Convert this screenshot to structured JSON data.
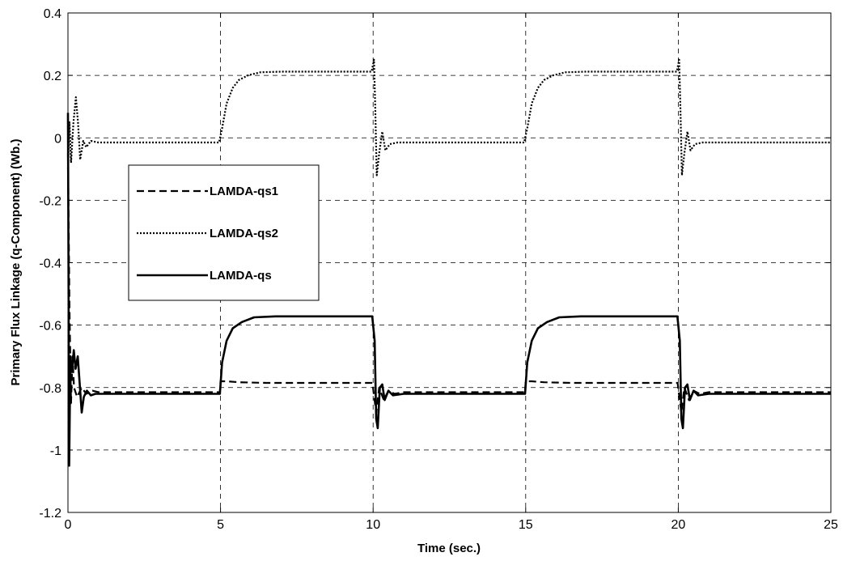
{
  "chart_data": {
    "type": "line",
    "title": "",
    "xlabel": "Time (sec.)",
    "ylabel": "Primary Flux Linkage (q-Component) (Wb.)",
    "xlim": [
      0,
      25
    ],
    "ylim": [
      -1.2,
      0.4
    ],
    "xticks": [
      0,
      5,
      10,
      15,
      20,
      25
    ],
    "yticks": [
      -1.2,
      -1,
      -0.8,
      -0.6,
      -0.4,
      -0.2,
      0,
      0.2,
      0.4
    ],
    "xtick_labels": [
      "0",
      "5",
      "10",
      "15",
      "20",
      "25"
    ],
    "ytick_labels": [
      "-1.2",
      "-1",
      "-0.8",
      "-0.6",
      "-0.4",
      "-0.2",
      "0",
      "0.2",
      "0.4"
    ],
    "grid": true,
    "legend_position": "center-left",
    "series": [
      {
        "name": "LAMDA-qs1",
        "style": "dashed",
        "color": "#000000",
        "points": [
          [
            0,
            -0.05
          ],
          [
            0.05,
            -0.55
          ],
          [
            0.1,
            -0.85
          ],
          [
            0.15,
            -0.7
          ],
          [
            0.2,
            -0.8
          ],
          [
            0.3,
            -0.83
          ],
          [
            0.45,
            -0.8
          ],
          [
            0.6,
            -0.82
          ],
          [
            0.8,
            -0.81
          ],
          [
            1.0,
            -0.815
          ],
          [
            1.5,
            -0.815
          ],
          [
            4.98,
            -0.815
          ],
          [
            5.0,
            -0.78
          ],
          [
            5.2,
            -0.78
          ],
          [
            5.6,
            -0.783
          ],
          [
            6.5,
            -0.785
          ],
          [
            9.98,
            -0.785
          ],
          [
            10.02,
            -0.82
          ],
          [
            10.1,
            -0.88
          ],
          [
            10.2,
            -0.8
          ],
          [
            10.35,
            -0.84
          ],
          [
            10.5,
            -0.81
          ],
          [
            10.7,
            -0.82
          ],
          [
            11.0,
            -0.815
          ],
          [
            14.98,
            -0.815
          ],
          [
            15.0,
            -0.78
          ],
          [
            15.2,
            -0.78
          ],
          [
            15.6,
            -0.783
          ],
          [
            16.5,
            -0.785
          ],
          [
            19.98,
            -0.785
          ],
          [
            20.02,
            -0.82
          ],
          [
            20.1,
            -0.88
          ],
          [
            20.2,
            -0.8
          ],
          [
            20.35,
            -0.84
          ],
          [
            20.5,
            -0.81
          ],
          [
            20.7,
            -0.82
          ],
          [
            21.0,
            -0.815
          ],
          [
            25,
            -0.815
          ]
        ]
      },
      {
        "name": "LAMDA-qs2",
        "style": "dotted",
        "color": "#000000",
        "points": [
          [
            0,
            -0.1
          ],
          [
            0.05,
            0.05
          ],
          [
            0.1,
            -0.08
          ],
          [
            0.18,
            0.05
          ],
          [
            0.26,
            0.13
          ],
          [
            0.33,
            0.05
          ],
          [
            0.4,
            -0.07
          ],
          [
            0.5,
            -0.01
          ],
          [
            0.6,
            -0.03
          ],
          [
            0.75,
            -0.01
          ],
          [
            1.0,
            -0.015
          ],
          [
            1.5,
            -0.015
          ],
          [
            4.95,
            -0.015
          ],
          [
            5.05,
            0.03
          ],
          [
            5.2,
            0.11
          ],
          [
            5.4,
            0.16
          ],
          [
            5.6,
            0.185
          ],
          [
            5.9,
            0.2
          ],
          [
            6.3,
            0.21
          ],
          [
            7.0,
            0.212
          ],
          [
            9.95,
            0.212
          ],
          [
            10.03,
            0.25
          ],
          [
            10.07,
            0.1
          ],
          [
            10.12,
            -0.12
          ],
          [
            10.2,
            -0.05
          ],
          [
            10.3,
            0.02
          ],
          [
            10.4,
            -0.04
          ],
          [
            10.55,
            -0.02
          ],
          [
            10.8,
            -0.015
          ],
          [
            11.5,
            -0.015
          ],
          [
            14.95,
            -0.015
          ],
          [
            15.05,
            0.03
          ],
          [
            15.2,
            0.11
          ],
          [
            15.4,
            0.16
          ],
          [
            15.6,
            0.185
          ],
          [
            15.9,
            0.2
          ],
          [
            16.3,
            0.21
          ],
          [
            17.0,
            0.212
          ],
          [
            19.95,
            0.212
          ],
          [
            20.03,
            0.25
          ],
          [
            20.07,
            0.1
          ],
          [
            20.12,
            -0.12
          ],
          [
            20.2,
            -0.05
          ],
          [
            20.3,
            0.02
          ],
          [
            20.4,
            -0.04
          ],
          [
            20.55,
            -0.02
          ],
          [
            20.8,
            -0.015
          ],
          [
            21.5,
            -0.015
          ],
          [
            25,
            -0.015
          ]
        ]
      },
      {
        "name": "LAMDA-qs",
        "style": "solid",
        "color": "#000000",
        "points": [
          [
            0,
            0.08
          ],
          [
            0.04,
            -1.05
          ],
          [
            0.08,
            -0.7
          ],
          [
            0.13,
            -0.75
          ],
          [
            0.19,
            -0.68
          ],
          [
            0.25,
            -0.74
          ],
          [
            0.32,
            -0.7
          ],
          [
            0.38,
            -0.78
          ],
          [
            0.45,
            -0.88
          ],
          [
            0.52,
            -0.83
          ],
          [
            0.62,
            -0.81
          ],
          [
            0.75,
            -0.825
          ],
          [
            0.9,
            -0.82
          ],
          [
            1.5,
            -0.82
          ],
          [
            4.98,
            -0.82
          ],
          [
            5.05,
            -0.72
          ],
          [
            5.2,
            -0.65
          ],
          [
            5.4,
            -0.61
          ],
          [
            5.7,
            -0.59
          ],
          [
            6.1,
            -0.575
          ],
          [
            6.8,
            -0.572
          ],
          [
            9.97,
            -0.572
          ],
          [
            10.05,
            -0.65
          ],
          [
            10.1,
            -0.9
          ],
          [
            10.15,
            -0.93
          ],
          [
            10.22,
            -0.8
          ],
          [
            10.3,
            -0.79
          ],
          [
            10.38,
            -0.84
          ],
          [
            10.5,
            -0.81
          ],
          [
            10.65,
            -0.825
          ],
          [
            11.0,
            -0.82
          ],
          [
            14.98,
            -0.82
          ],
          [
            15.05,
            -0.72
          ],
          [
            15.2,
            -0.65
          ],
          [
            15.4,
            -0.61
          ],
          [
            15.7,
            -0.59
          ],
          [
            16.1,
            -0.575
          ],
          [
            16.8,
            -0.572
          ],
          [
            19.97,
            -0.572
          ],
          [
            20.05,
            -0.65
          ],
          [
            20.1,
            -0.9
          ],
          [
            20.15,
            -0.93
          ],
          [
            20.22,
            -0.8
          ],
          [
            20.3,
            -0.79
          ],
          [
            20.38,
            -0.84
          ],
          [
            20.5,
            -0.81
          ],
          [
            20.65,
            -0.825
          ],
          [
            21.0,
            -0.82
          ],
          [
            25,
            -0.82
          ]
        ]
      }
    ]
  }
}
